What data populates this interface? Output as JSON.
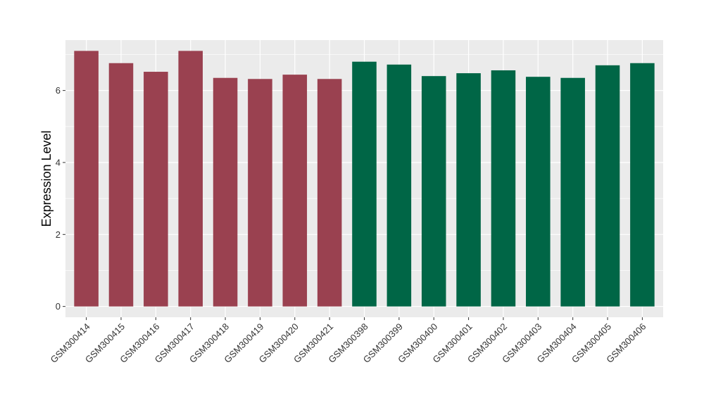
{
  "chart_data": {
    "type": "bar",
    "categories": [
      "GSM300414",
      "GSM300415",
      "GSM300416",
      "GSM300417",
      "GSM300418",
      "GSM300419",
      "GSM300420",
      "GSM300421",
      "GSM300398",
      "GSM300399",
      "GSM300400",
      "GSM300401",
      "GSM300402",
      "GSM300403",
      "GSM300404",
      "GSM300405",
      "GSM300406"
    ],
    "values": [
      7.1,
      6.76,
      6.52,
      7.1,
      6.35,
      6.32,
      6.44,
      6.32,
      6.8,
      6.72,
      6.4,
      6.48,
      6.56,
      6.38,
      6.35,
      6.7,
      6.76
    ],
    "bar_colors": [
      "#9a4150",
      "#9a4150",
      "#9a4150",
      "#9a4150",
      "#9a4150",
      "#9a4150",
      "#9a4150",
      "#9a4150",
      "#006646",
      "#006646",
      "#006646",
      "#006646",
      "#006646",
      "#006646",
      "#006646",
      "#006646",
      "#006646"
    ],
    "ylabel": "Expression Level",
    "xlabel": "",
    "ylim": [
      -0.3,
      7.4
    ],
    "yticks": [
      0,
      2,
      4,
      6
    ],
    "ytick_labels": [
      "0",
      "2",
      "4",
      "6"
    ],
    "grid": true,
    "panel_background": "#ebebeb",
    "grid_color": "#ffffff"
  }
}
